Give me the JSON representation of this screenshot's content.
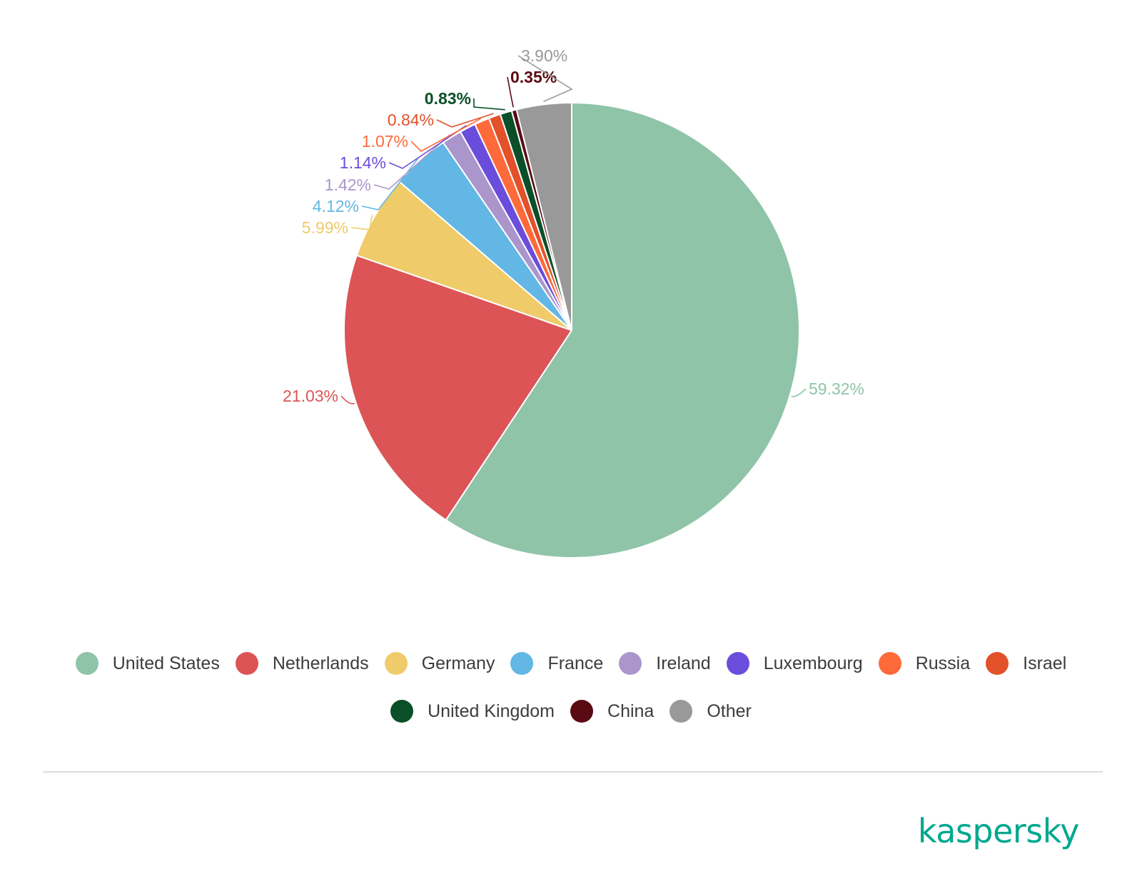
{
  "chart_data": {
    "type": "pie",
    "title": "",
    "start_angle_deg": 0,
    "direction": "clockwise",
    "slices": [
      {
        "label": "United States",
        "value": 59.32,
        "display": "59.32%",
        "color": "#8fc4a9"
      },
      {
        "label": "Netherlands",
        "value": 21.03,
        "display": "21.03%",
        "color": "#dc5456"
      },
      {
        "label": "Germany",
        "value": 5.99,
        "display": "5.99%",
        "color": "#efcb6a"
      },
      {
        "label": "France",
        "value": 4.12,
        "display": "4.12%",
        "color": "#62b7e4"
      },
      {
        "label": "Ireland",
        "value": 1.42,
        "display": "1.42%",
        "color": "#ab96cb"
      },
      {
        "label": "Luxembourg",
        "value": 1.14,
        "display": "1.14%",
        "color": "#6b4ddc"
      },
      {
        "label": "Russia",
        "value": 1.07,
        "display": "1.07%",
        "color": "#ff6a3a"
      },
      {
        "label": "Israel",
        "value": 0.84,
        "display": "0.84%",
        "color": "#e2512a"
      },
      {
        "label": "United Kingdom",
        "value": 0.83,
        "display": "0.83%",
        "color": "#0a4f27"
      },
      {
        "label": "China",
        "value": 0.35,
        "display": "0.35%",
        "color": "#5a0a13"
      },
      {
        "label": "Other",
        "value": 3.9,
        "display": "3.90%",
        "color": "#999999"
      }
    ],
    "legend_position": "bottom"
  },
  "legend": {
    "row1": [
      {
        "label": "United States",
        "color": "#8fc4a9"
      },
      {
        "label": "Netherlands",
        "color": "#dc5456"
      },
      {
        "label": "Germany",
        "color": "#efcb6a"
      },
      {
        "label": "France",
        "color": "#62b7e4"
      },
      {
        "label": "Ireland",
        "color": "#ab96cb"
      },
      {
        "label": "Luxembourg",
        "color": "#6b4ddc"
      },
      {
        "label": "Russia",
        "color": "#ff6a3a"
      },
      {
        "label": "Israel",
        "color": "#e2512a"
      }
    ],
    "row2": [
      {
        "label": "United Kingdom",
        "color": "#0a4f27"
      },
      {
        "label": "China",
        "color": "#5a0a13"
      },
      {
        "label": "Other",
        "color": "#999999"
      }
    ]
  },
  "branding": {
    "logo_text": "kaspersky",
    "logo_color": "#00a88e"
  }
}
